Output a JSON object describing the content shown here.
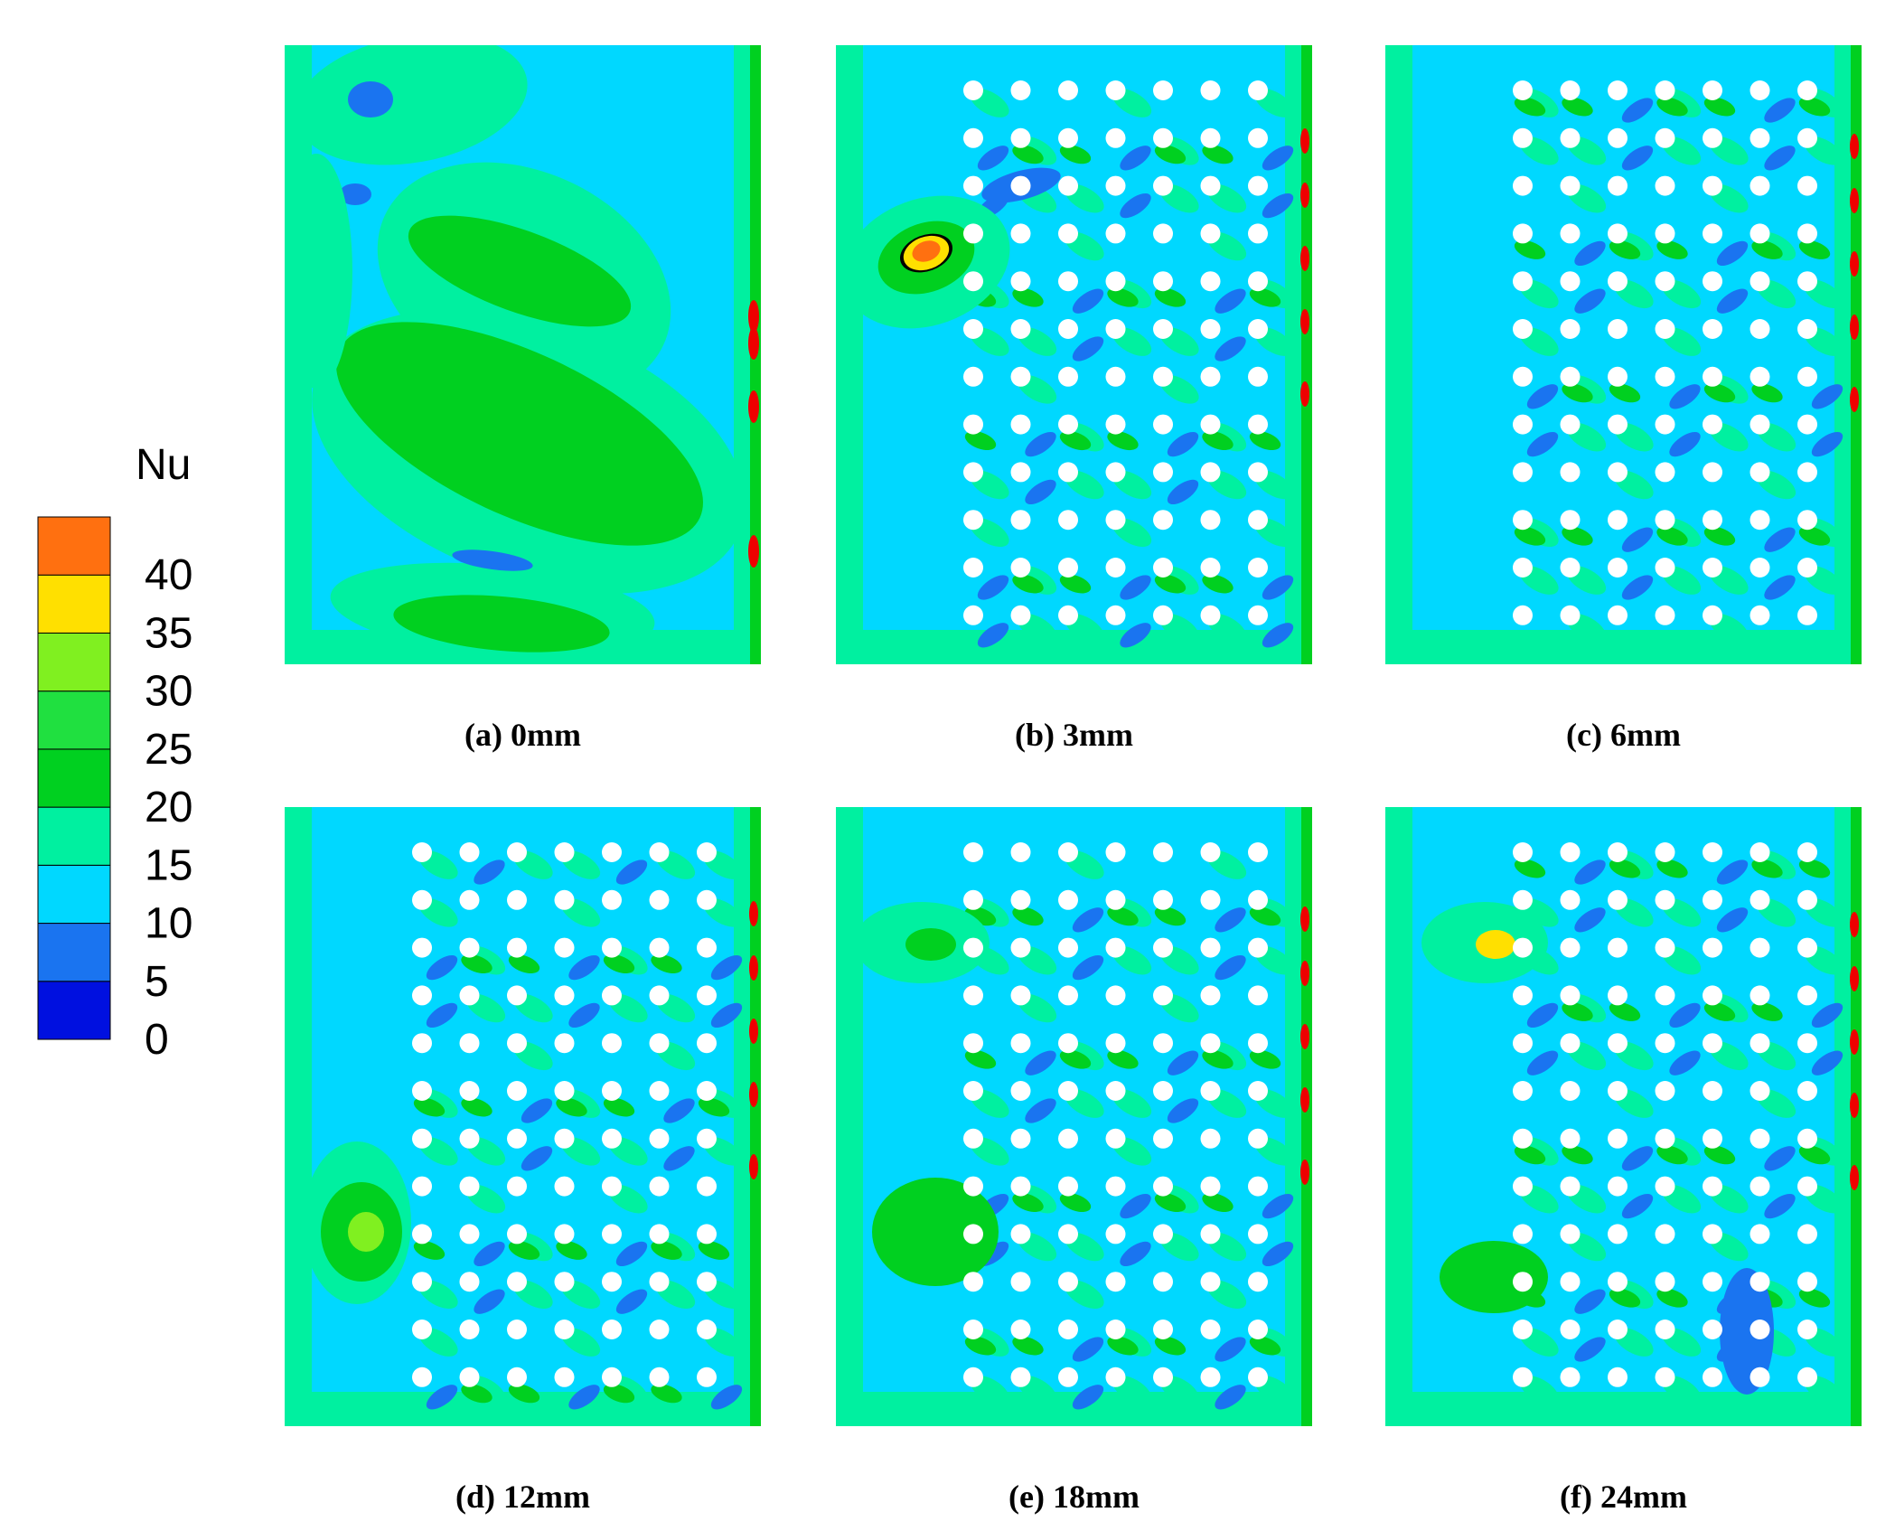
{
  "chart_data": {
    "type": "heatmap",
    "colorbar": {
      "title": "Nu",
      "ticks": [
        40,
        35,
        30,
        25,
        20,
        15,
        10,
        5,
        0
      ],
      "levels": [
        0,
        5,
        10,
        15,
        20,
        25,
        30,
        35,
        40,
        45
      ],
      "colors": [
        "#0010e0",
        "#1a74f0",
        "#00d8ff",
        "#00f0a0",
        "#00d020",
        "#20e040",
        "#80f020",
        "#ffe000",
        "#ff7010",
        "#ee0000"
      ]
    },
    "panels": [
      {
        "label": "(a) 0mm",
        "pins": false
      },
      {
        "label": "(b) 3mm",
        "pins": true,
        "rows": 12,
        "cols": 7
      },
      {
        "label": "(c) 6mm",
        "pins": true,
        "rows": 12,
        "cols": 7
      },
      {
        "label": "(d) 12mm",
        "pins": true,
        "rows": 12,
        "cols": 7
      },
      {
        "label": "(e) 18mm",
        "pins": true,
        "rows": 12,
        "cols": 7
      },
      {
        "label": "(f) 24mm",
        "pins": true,
        "rows": 12,
        "cols": 7
      }
    ]
  },
  "colors": {
    "background": "#ffffff",
    "pin_fill": "#ffffff",
    "base_field": "#00d8ff",
    "warm_field": "#00f0a0",
    "hot_field": "#00d020",
    "cold_field": "#1a74f0",
    "peak_field": "#ee0000"
  }
}
